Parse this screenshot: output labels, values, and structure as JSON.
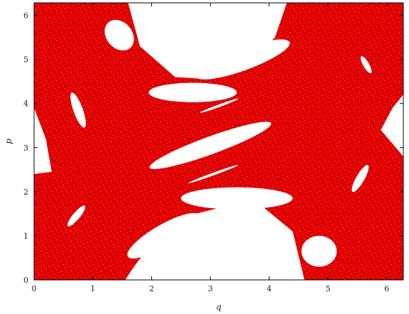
{
  "chart_data": {
    "type": "scatter",
    "title": "",
    "xlabel": "q",
    "ylabel": "p",
    "xlim": [
      0,
      6.283
    ],
    "ylim": [
      0,
      6.283
    ],
    "x_ticks": [
      0,
      1,
      2,
      3,
      4,
      5,
      6
    ],
    "y_ticks": [
      0,
      1,
      2,
      3,
      4,
      5,
      6
    ],
    "tick_labels_x": [
      "0",
      "1",
      "2",
      "3",
      "4",
      "5",
      "6"
    ],
    "tick_labels_y": [
      "0",
      "1",
      "2",
      "3",
      "4",
      "5",
      "6"
    ],
    "grid": false,
    "legend": "none",
    "marker_color": "#e00000",
    "description_regions": {
      "fill": "chaotic sea covering the phase square",
      "white_islands": [
        {
          "cx": 1.45,
          "cy": 5.55,
          "rx": 0.22,
          "ry": 0.38,
          "rot": 40
        },
        {
          "cx": 2.7,
          "cy": 4.25,
          "rx": 0.75,
          "ry": 0.22,
          "rot": 0
        },
        {
          "cx": 3.55,
          "cy": 5.0,
          "rx": 0.85,
          "ry": 0.25,
          "rot": 20
        },
        {
          "cx": 5.65,
          "cy": 4.88,
          "rx": 0.05,
          "ry": 0.22,
          "rot": 30
        },
        {
          "cx": 0.75,
          "cy": 3.85,
          "rx": 0.08,
          "ry": 0.42,
          "rot": 20
        },
        {
          "cx": 3.0,
          "cy": 3.05,
          "rx": 1.1,
          "ry": 0.2,
          "rot": 20
        },
        {
          "cx": 3.15,
          "cy": 3.95,
          "rx": 0.35,
          "ry": 0.03,
          "rot": 20
        },
        {
          "cx": 3.05,
          "cy": 2.4,
          "rx": 0.45,
          "ry": 0.03,
          "rot": 20
        },
        {
          "cx": 5.55,
          "cy": 2.3,
          "rx": 0.07,
          "ry": 0.35,
          "rot": -30
        },
        {
          "cx": 0.72,
          "cy": 1.45,
          "rx": 0.06,
          "ry": 0.3,
          "rot": -40
        },
        {
          "cx": 3.45,
          "cy": 1.85,
          "rx": 0.95,
          "ry": 0.25,
          "rot": 0
        },
        {
          "cx": 2.2,
          "cy": 1.0,
          "rx": 0.7,
          "ry": 0.25,
          "rot": 30
        },
        {
          "cx": 4.85,
          "cy": 0.65,
          "rx": 0.3,
          "ry": 0.35,
          "rot": 0
        }
      ]
    }
  }
}
